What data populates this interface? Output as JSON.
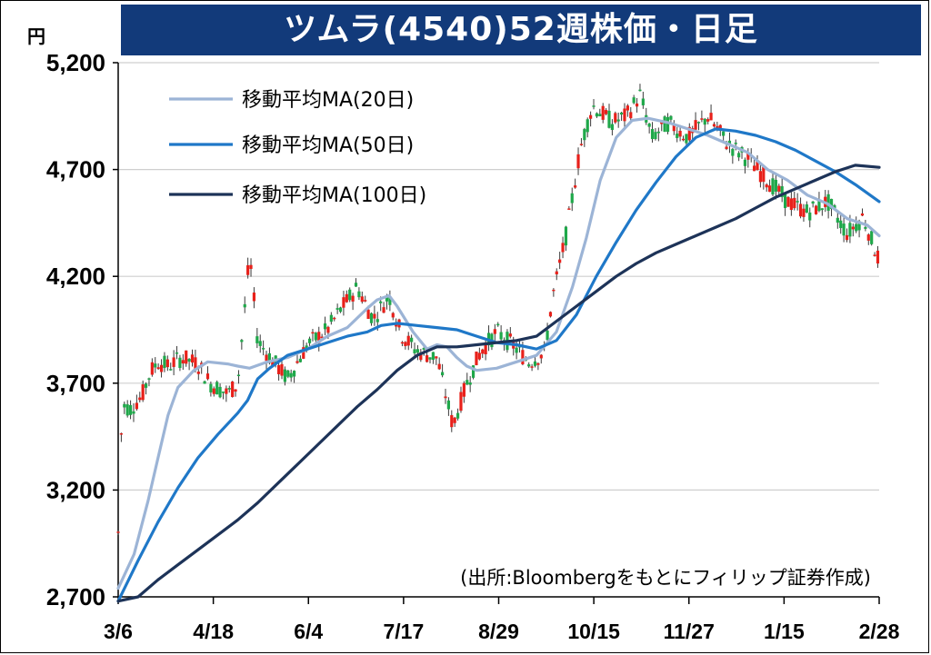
{
  "title": "ツムラ(4540)52週株価・日足",
  "unit_label": "円",
  "source_note": "(出所:Bloombergをもとにフィリップ証券作成)",
  "colors": {
    "title_bg": "#123a7a",
    "up": "#e8201a",
    "down": "#1fa84a",
    "wick": "#3a3a3a",
    "ma20": "#9cb4d6",
    "ma50": "#1f78c8",
    "ma100": "#1d3358",
    "grid": "#cfcfcf"
  },
  "chart_data": {
    "type": "line",
    "title": "ツムラ(4540)52週株価・日足",
    "ylim": [
      2700,
      5200
    ],
    "yticks": [
      5200,
      4700,
      4200,
      3700,
      3200,
      2700
    ],
    "ytick_labels": [
      "5,200",
      "4,700",
      "4,200",
      "3,700",
      "3,200",
      "2,700"
    ],
    "xtick_labels": [
      "3/6",
      "4/18",
      "6/4",
      "7/17",
      "8/29",
      "10/15",
      "11/27",
      "1/15",
      "2/28"
    ],
    "x_count": 250,
    "grid": true,
    "legend_position": "top-left",
    "series": [
      {
        "name": "移動平均MA(20日)",
        "color": "#9cb4d6",
        "points": [
          [
            0,
            2740
          ],
          [
            8,
            2900
          ],
          [
            15,
            3150
          ],
          [
            20,
            3350
          ],
          [
            25,
            3550
          ],
          [
            30,
            3680
          ],
          [
            38,
            3760
          ],
          [
            45,
            3800
          ],
          [
            55,
            3790
          ],
          [
            60,
            3780
          ],
          [
            66,
            3770
          ],
          [
            75,
            3800
          ],
          [
            85,
            3820
          ],
          [
            95,
            3860
          ],
          [
            105,
            3920
          ],
          [
            115,
            3960
          ],
          [
            125,
            4050
          ],
          [
            130,
            4090
          ],
          [
            136,
            4110
          ],
          [
            140,
            4060
          ],
          [
            148,
            3940
          ],
          [
            155,
            3860
          ],
          [
            160,
            3880
          ],
          [
            165,
            3870
          ],
          [
            170,
            3820
          ],
          [
            175,
            3780
          ],
          [
            180,
            3760
          ],
          [
            190,
            3770
          ],
          [
            200,
            3800
          ],
          [
            210,
            3830
          ],
          [
            220,
            3940
          ],
          [
            228,
            4150
          ],
          [
            235,
            4380
          ],
          [
            242,
            4650
          ],
          [
            250,
            4850
          ],
          [
            258,
            4930
          ],
          [
            266,
            4940
          ],
          [
            276,
            4920
          ],
          [
            286,
            4890
          ],
          [
            296,
            4860
          ],
          [
            306,
            4820
          ],
          [
            316,
            4780
          ],
          [
            326,
            4700
          ],
          [
            336,
            4650
          ],
          [
            346,
            4580
          ],
          [
            356,
            4540
          ],
          [
            366,
            4470
          ],
          [
            376,
            4440
          ],
          [
            382,
            4390
          ]
        ]
      },
      {
        "name": "移動平均MA(50日)",
        "color": "#1f78c8",
        "points": [
          [
            0,
            2680
          ],
          [
            10,
            2870
          ],
          [
            20,
            3050
          ],
          [
            30,
            3210
          ],
          [
            40,
            3350
          ],
          [
            50,
            3460
          ],
          [
            60,
            3560
          ],
          [
            65,
            3620
          ],
          [
            70,
            3720
          ],
          [
            76,
            3770
          ],
          [
            85,
            3830
          ],
          [
            95,
            3860
          ],
          [
            105,
            3890
          ],
          [
            115,
            3920
          ],
          [
            125,
            3940
          ],
          [
            132,
            3970
          ],
          [
            140,
            3980
          ],
          [
            150,
            3970
          ],
          [
            160,
            3960
          ],
          [
            170,
            3950
          ],
          [
            180,
            3920
          ],
          [
            190,
            3890
          ],
          [
            200,
            3880
          ],
          [
            210,
            3860
          ],
          [
            220,
            3900
          ],
          [
            230,
            4020
          ],
          [
            240,
            4200
          ],
          [
            250,
            4360
          ],
          [
            260,
            4510
          ],
          [
            270,
            4640
          ],
          [
            280,
            4760
          ],
          [
            290,
            4850
          ],
          [
            300,
            4890
          ],
          [
            310,
            4880
          ],
          [
            320,
            4860
          ],
          [
            330,
            4830
          ],
          [
            340,
            4790
          ],
          [
            350,
            4740
          ],
          [
            360,
            4690
          ],
          [
            370,
            4630
          ],
          [
            382,
            4550
          ]
        ]
      },
      {
        "name": "移動平均MA(100日)",
        "color": "#1d3358",
        "points": [
          [
            0,
            2680
          ],
          [
            10,
            2700
          ],
          [
            20,
            2780
          ],
          [
            30,
            2850
          ],
          [
            40,
            2920
          ],
          [
            50,
            2990
          ],
          [
            60,
            3060
          ],
          [
            70,
            3140
          ],
          [
            80,
            3230
          ],
          [
            90,
            3320
          ],
          [
            100,
            3410
          ],
          [
            110,
            3500
          ],
          [
            120,
            3590
          ],
          [
            130,
            3670
          ],
          [
            140,
            3760
          ],
          [
            150,
            3830
          ],
          [
            160,
            3870
          ],
          [
            170,
            3870
          ],
          [
            180,
            3880
          ],
          [
            190,
            3890
          ],
          [
            200,
            3900
          ],
          [
            210,
            3920
          ],
          [
            220,
            3990
          ],
          [
            230,
            4060
          ],
          [
            240,
            4130
          ],
          [
            250,
            4200
          ],
          [
            260,
            4260
          ],
          [
            270,
            4310
          ],
          [
            280,
            4350
          ],
          [
            290,
            4390
          ],
          [
            300,
            4430
          ],
          [
            310,
            4470
          ],
          [
            320,
            4520
          ],
          [
            330,
            4570
          ],
          [
            340,
            4610
          ],
          [
            350,
            4650
          ],
          [
            360,
            4690
          ],
          [
            370,
            4720
          ],
          [
            382,
            4710
          ]
        ]
      }
    ]
  }
}
